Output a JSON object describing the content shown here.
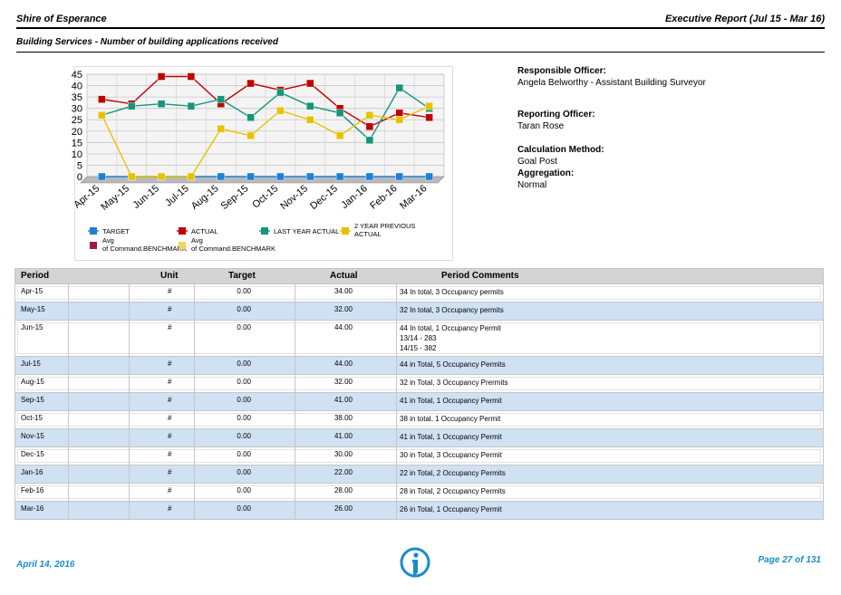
{
  "header": {
    "org": "Shire of Esperance",
    "report": "Executive Report (Jul 15 - Mar 16)",
    "subtitle": "Building Services - Number of building applications received"
  },
  "info": {
    "responsible_label": "Responsible Officer:",
    "responsible_value": "Angela Belworthy - Assistant Building Surveyor",
    "reporting_label": "Reporting Officer:",
    "reporting_value": "Taran Rose",
    "calc_label": "Calculation Method:",
    "calc_value": "Goal Post",
    "agg_label": "Aggregation:",
    "agg_value": "Normal"
  },
  "colors": {
    "target": "#1f7fd8",
    "actual": "#c00000",
    "last_year": "#16957a",
    "two_year": "#e8c200",
    "avg_actual": "#a01848",
    "avg_two_year": "#f2d35c",
    "accent": "#1a8ccc"
  },
  "chart_data": {
    "type": "line",
    "categories": [
      "Apr-15",
      "May-15",
      "Jun-15",
      "Jul-15",
      "Aug-15",
      "Sep-15",
      "Oct-15",
      "Nov-15",
      "Dec-15",
      "Jan-16",
      "Feb-16",
      "Mar-16"
    ],
    "ylim": [
      0,
      45
    ],
    "yticks": [
      0,
      5,
      10,
      15,
      20,
      25,
      30,
      35,
      40,
      45
    ],
    "grid": true,
    "legend_position": "bottom",
    "series": [
      {
        "name": "TARGET",
        "color": "#1f7fd8",
        "values": [
          0,
          0,
          0,
          0,
          0,
          0,
          0,
          0,
          0,
          0,
          0,
          0
        ]
      },
      {
        "name": "ACTUAL",
        "color": "#c00000",
        "values": [
          34,
          32,
          44,
          44,
          32,
          41,
          38,
          41,
          30,
          22,
          28,
          26
        ]
      },
      {
        "name": "LAST YEAR ACTUAL",
        "color": "#16957a",
        "values": [
          27,
          31,
          32,
          31,
          34,
          26,
          37,
          31,
          28,
          16,
          39,
          30
        ]
      },
      {
        "name": "2 YEAR PREVIOUS ACTUAL",
        "color": "#e8c200",
        "values": [
          27,
          0,
          0,
          0,
          21,
          18,
          29,
          25,
          18,
          27,
          25,
          31
        ]
      }
    ],
    "legend": [
      {
        "label": "TARGET",
        "color": "#1f7fd8"
      },
      {
        "label": "ACTUAL",
        "color": "#c00000"
      },
      {
        "label": "LAST YEAR ACTUAL",
        "color": "#16957a"
      },
      {
        "label": "2 YEAR PREVIOUS ACTUAL",
        "color": "#e8c200"
      },
      {
        "label": "Avg of Command.BENCHMARK",
        "color": "#a01848"
      },
      {
        "label": "Avg of Command.BENCHMARK",
        "color": "#f2d35c"
      }
    ]
  },
  "table": {
    "headers": {
      "period": "Period",
      "unit": "Unit",
      "target": "Target",
      "actual": "Actual",
      "comments": "Period Comments"
    },
    "rows": [
      {
        "period": "Apr-15",
        "unit": "#",
        "target": "0.00",
        "actual": "34.00",
        "comments": [
          "34 In total, 3 Occupancy permits"
        ]
      },
      {
        "period": "May-15",
        "unit": "#",
        "target": "0.00",
        "actual": "32.00",
        "comments": [
          "32 In total, 3 Occupancy permits"
        ]
      },
      {
        "period": "Jun-15",
        "unit": "#",
        "target": "0.00",
        "actual": "44.00",
        "comments": [
          "44 In total, 1 Occupancy Permit",
          "13/14 - 283",
          "14/15 - 382"
        ]
      },
      {
        "period": "Jul-15",
        "unit": "#",
        "target": "0.00",
        "actual": "44.00",
        "comments": [
          "44 in Total, 5 Occupancy Permits"
        ]
      },
      {
        "period": "Aug-15",
        "unit": "#",
        "target": "0.00",
        "actual": "32.00",
        "comments": [
          "32 in Total, 3 Occupancy Prermits"
        ]
      },
      {
        "period": "Sep-15",
        "unit": "#",
        "target": "0.00",
        "actual": "41.00",
        "comments": [
          "41 in Total, 1 Occupancy Permit"
        ]
      },
      {
        "period": "Oct-15",
        "unit": "#",
        "target": "0.00",
        "actual": "38.00",
        "comments": [
          "38 in total, 1 Occupancy Permit"
        ]
      },
      {
        "period": "Nov-15",
        "unit": "#",
        "target": "0.00",
        "actual": "41.00",
        "comments": [
          "41 in Total, 1 Occupancy Permit"
        ]
      },
      {
        "period": "Dec-15",
        "unit": "#",
        "target": "0.00",
        "actual": "30.00",
        "comments": [
          "30 in Total, 3 Occupancy Permit"
        ]
      },
      {
        "period": "Jan-16",
        "unit": "#",
        "target": "0.00",
        "actual": "22.00",
        "comments": [
          "22 in Total, 2 Occupancy Permits"
        ]
      },
      {
        "period": "Feb-16",
        "unit": "#",
        "target": "0.00",
        "actual": "28.00",
        "comments": [
          "28 in Total, 2 Occupancy Permits"
        ]
      },
      {
        "period": "Mar-16",
        "unit": "#",
        "target": "0.00",
        "actual": "26.00",
        "comments": [
          "26 in Total, 1 Occupancy Permit"
        ]
      }
    ]
  },
  "footer": {
    "date": "April 14, 2016",
    "page": "Page 27 of 131",
    "logo_icon": "info-i-logo-icon"
  }
}
